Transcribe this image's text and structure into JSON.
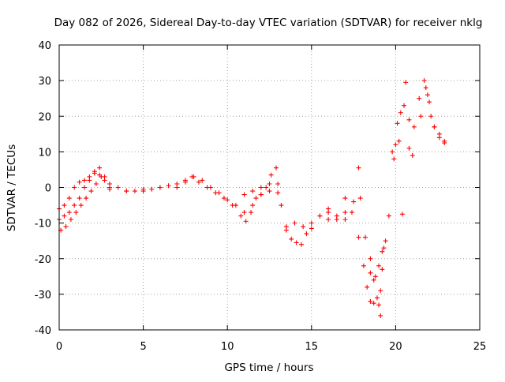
{
  "chart_data": {
    "type": "scatter",
    "title": "Day 082 of 2026, Sidereal Day-to-day VTEC variation (SDTVAR) for receiver nklg",
    "xlabel": "GPS time / hours",
    "ylabel": "SDTVAR / TECUs",
    "xlim": [
      0,
      25
    ],
    "ylim": [
      -40,
      40
    ],
    "xticks": [
      "0",
      "5",
      "10",
      "15",
      "20",
      "25"
    ],
    "yticks": [
      "40",
      "30",
      "20",
      "10",
      "0",
      "-10",
      "-20",
      "-30",
      "-40"
    ],
    "grid": true,
    "marker": "+",
    "series": [
      {
        "name": "SDTVAR",
        "color": "#ff0000",
        "x": [
          0.0,
          0.3,
          0.6,
          0.9,
          1.2,
          1.5,
          1.8,
          2.1,
          2.4,
          2.7,
          3.0,
          3.5,
          4.0,
          4.5,
          5.0,
          5.5,
          6.0,
          6.5,
          7.0,
          7.5,
          7.9,
          8.3,
          8.8,
          9.3,
          9.8,
          10.3,
          10.8,
          11.1,
          11.4,
          11.7,
          12.0,
          12.3,
          12.6,
          12.9,
          13.2,
          13.5,
          13.8,
          14.1,
          14.4,
          14.7,
          15.0,
          15.5,
          16.0,
          16.5,
          17.0,
          17.4,
          17.8,
          18.1,
          18.3,
          18.5,
          18.7,
          18.9,
          19.1,
          19.3,
          19.6,
          19.9,
          20.1,
          20.3,
          20.5,
          20.8,
          21.1,
          21.4,
          21.7,
          21.9,
          22.1,
          22.3,
          22.6,
          22.9,
          0.0,
          0.3,
          0.6,
          0.9,
          1.2,
          1.5,
          1.8,
          2.1,
          2.4,
          2.7,
          3.0,
          4.0,
          5.0,
          6.0,
          7.0,
          7.5,
          8.0,
          8.5,
          9.0,
          9.5,
          10.0,
          10.5,
          11.0,
          11.5,
          12.0,
          12.5,
          13.0,
          13.5,
          14.0,
          14.5,
          15.0,
          15.5,
          16.0,
          16.5,
          17.0,
          17.5,
          17.9,
          18.2,
          18.5,
          18.8,
          19.0,
          19.2,
          0.1,
          0.4,
          0.7,
          1.0,
          1.3,
          1.6,
          1.9,
          2.2,
          2.5,
          3.0,
          11.0,
          11.5,
          12.0,
          12.5,
          13.0,
          16.0,
          17.0,
          17.8,
          18.5,
          18.7,
          19.0,
          19.1,
          19.2,
          19.4,
          19.8,
          20.0,
          20.2,
          20.4,
          20.6,
          20.8,
          21.0,
          21.5,
          21.8,
          22.0,
          22.3,
          22.6,
          22.9
        ],
        "y": [
          -6.0,
          -5.0,
          -3.0,
          0.0,
          1.5,
          2.0,
          3.0,
          4.0,
          5.5,
          3.0,
          1.0,
          0.0,
          -1.0,
          -1.0,
          -1.0,
          -0.5,
          0.0,
          0.5,
          1.0,
          1.5,
          3.0,
          1.5,
          0.0,
          -1.5,
          -3.0,
          -5.0,
          -8.0,
          -9.5,
          -7.0,
          -3.0,
          -2.0,
          0.0,
          3.5,
          5.5,
          -5.0,
          -11.0,
          -14.5,
          -15.5,
          -16.0,
          -13.0,
          -10.0,
          -8.0,
          -7.0,
          -8.0,
          -9.0,
          -7.0,
          -14.0,
          -22.0,
          -28.0,
          -32.0,
          -32.5,
          -31.0,
          -29.0,
          -17.0,
          -8.0,
          8.0,
          18.0,
          21.0,
          23.0,
          19.0,
          17.0,
          25.0,
          30.0,
          26.0,
          20.0,
          17.0,
          14.0,
          12.5,
          -9.0,
          -8.0,
          -7.0,
          -5.0,
          -3.0,
          0.0,
          2.0,
          4.5,
          3.5,
          2.0,
          -0.5,
          -1.0,
          -0.5,
          0.0,
          0.0,
          2.0,
          3.0,
          2.0,
          0.0,
          -1.5,
          -3.5,
          -5.0,
          -7.0,
          -5.0,
          -2.0,
          -1.0,
          -1.5,
          -12.0,
          -10.0,
          -11.0,
          -11.5,
          -8.0,
          -9.0,
          -9.0,
          -7.0,
          -4.0,
          -3.0,
          -14.0,
          -20.0,
          -25.0,
          -22.0,
          -18.0,
          -12.0,
          -11.0,
          -9.0,
          -7.0,
          -5.0,
          -3.0,
          -1.0,
          1.0,
          3.0,
          0.0,
          -2.0,
          -1.0,
          0.0,
          1.0,
          1.0,
          -6.0,
          -3.0,
          5.5,
          -24.0,
          -26.0,
          -33.0,
          -36.0,
          -23.0,
          -15.0,
          10.0,
          12.0,
          13.0,
          -7.5,
          29.5,
          11.0,
          9.0,
          20.0,
          28.0,
          24.0,
          17.0,
          15.0,
          13.0
        ]
      }
    ]
  }
}
